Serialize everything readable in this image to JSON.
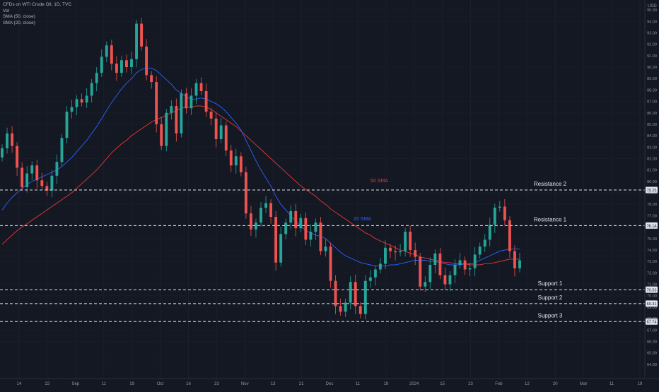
{
  "legend": {
    "symbol": "CFDs on WTI Crude Oil, 1D, TVC",
    "volume": "Vol",
    "sma50": "SMA (50, close)",
    "sma20": "SMA (20, close)"
  },
  "currency": "USD",
  "colors": {
    "background": "#141823",
    "up": "#26a69a",
    "down": "#ef5350",
    "sma20": "#2962ff",
    "sma50": "#e53935",
    "level_line": "#e0e3eb",
    "axis_text": "#9598a1"
  },
  "chart_data": {
    "type": "candlestick",
    "title": "CFDs on WTI Crude Oil, 1D, TVC",
    "ylim": [
      63.0,
      95.5
    ],
    "y_ticks": [
      64.0,
      65.0,
      66.0,
      67.0,
      68.0,
      69.0,
      70.0,
      71.0,
      72.0,
      73.0,
      74.0,
      75.0,
      76.0,
      77.0,
      78.0,
      79.0,
      80.0,
      81.0,
      82.0,
      83.0,
      84.0,
      85.0,
      86.0,
      87.0,
      88.0,
      89.0,
      90.0,
      91.0,
      92.0,
      93.0,
      94.0,
      95.0
    ],
    "x_tick_labels": [
      "14",
      "22",
      "Sep",
      "11",
      "19",
      "Oct",
      "16",
      "23",
      "Nov",
      "13",
      "21",
      "Dec",
      "11",
      "19",
      "2024",
      "15",
      "23",
      "Feb",
      "12",
      "20",
      "Mar",
      "11",
      "19"
    ],
    "price_labels": [
      "79.25",
      "76.14",
      "70.53",
      "69.31",
      "67.74"
    ],
    "levels": [
      {
        "label": "Resistance 2",
        "price": 79.25
      },
      {
        "label": "Resistance 1",
        "price": 76.14
      },
      {
        "label": "Support 1",
        "price": 70.53
      },
      {
        "label": "Support 2",
        "price": 69.31
      },
      {
        "label": "Support 3",
        "price": 67.74
      }
    ],
    "annotations": {
      "sma50": "50 SMA",
      "sma20": "20 SMA"
    },
    "series": [
      {
        "name": "SMA (20, close)"
      },
      {
        "name": "SMA (50, close)"
      }
    ],
    "closes": [
      82.9,
      84.2,
      83.1,
      81.2,
      79.5,
      80.7,
      81.4,
      80.1,
      79.6,
      79.2,
      80.5,
      81.7,
      83.8,
      86.1,
      86.5,
      87.2,
      86.9,
      87.5,
      88.6,
      89.5,
      90.9,
      91.9,
      90.3,
      89.5,
      90.6,
      90.0,
      90.7,
      93.8,
      91.8,
      89.3,
      88.7,
      85.0,
      83.1,
      86.0,
      86.6,
      84.2,
      87.7,
      86.4,
      87.5,
      88.6,
      87.9,
      86.1,
      85.5,
      83.7,
      84.9,
      82.7,
      81.4,
      82.2,
      80.8,
      77.2,
      75.8,
      76.4,
      77.7,
      78.1,
      76.9,
      72.9,
      75.4,
      76.4,
      77.4,
      75.9,
      76.8,
      74.9,
      75.6,
      76.4,
      73.9,
      74.3,
      71.3,
      69.1,
      68.6,
      69.4,
      71.2,
      69.1,
      68.4,
      71.3,
      71.6,
      72.3,
      72.8,
      74.2,
      73.9,
      73.8,
      73.9,
      75.6,
      74.0,
      73.4,
      70.8,
      71.2,
      72.7,
      73.7,
      71.8,
      71.0,
      71.8,
      72.7,
      73.1,
      72.3,
      72.4,
      73.6,
      74.3,
      74.9,
      76.2,
      77.7,
      77.8,
      76.6,
      73.9,
      72.4,
      73.1
    ],
    "sma20": [
      77.5,
      78.1,
      78.6,
      79.0,
      79.4,
      79.7,
      80.0,
      80.2,
      80.4,
      80.6,
      80.8,
      81.0,
      81.3,
      81.7,
      82.1,
      82.6,
      83.1,
      83.6,
      84.2,
      84.8,
      85.5,
      86.2,
      86.9,
      87.5,
      88.1,
      88.6,
      89.0,
      89.5,
      89.8,
      89.9,
      89.9,
      89.7,
      89.3,
      88.9,
      88.5,
      88.0,
      87.7,
      87.4,
      87.2,
      87.2,
      87.3,
      87.2,
      87.0,
      86.8,
      86.5,
      86.1,
      85.6,
      85.1,
      84.5,
      83.6,
      82.7,
      81.8,
      81.0,
      80.3,
      79.6,
      78.7,
      78.0,
      77.5,
      77.0,
      76.5,
      76.1,
      75.7,
      75.5,
      75.3,
      75.2,
      75.0,
      74.6,
      74.2,
      73.8,
      73.5,
      73.3,
      73.1,
      72.9,
      72.8,
      72.7,
      72.6,
      72.6,
      72.6,
      72.7,
      72.7,
      72.8,
      72.9,
      73.0,
      73.1,
      73.1,
      73.1,
      73.0,
      73.0,
      72.9,
      72.8,
      72.7,
      72.7,
      72.7,
      72.8,
      72.8,
      72.9,
      73.1,
      73.3,
      73.5,
      73.7,
      73.9,
      74.0,
      74.1,
      74.1,
      74.1
    ],
    "sma50": [
      74.5,
      74.9,
      75.3,
      75.7,
      76.0,
      76.3,
      76.6,
      76.9,
      77.2,
      77.5,
      77.8,
      78.1,
      78.4,
      78.7,
      79.0,
      79.4,
      79.8,
      80.2,
      80.6,
      81.0,
      81.5,
      82.0,
      82.5,
      82.9,
      83.3,
      83.6,
      84.0,
      84.3,
      84.6,
      84.9,
      85.2,
      85.4,
      85.6,
      85.8,
      86.0,
      86.2,
      86.4,
      86.5,
      86.5,
      86.6,
      86.6,
      86.5,
      86.3,
      86.0,
      85.7,
      85.4,
      85.1,
      84.8,
      84.4,
      84.0,
      83.6,
      83.2,
      82.8,
      82.4,
      82.0,
      81.6,
      81.2,
      80.8,
      80.4,
      80.0,
      79.6,
      79.3,
      79.0,
      78.7,
      78.3,
      78.0,
      77.6,
      77.3,
      77.0,
      76.7,
      76.4,
      76.1,
      75.8,
      75.5,
      75.3,
      75.0,
      74.8,
      74.6,
      74.4,
      74.2,
      74.0,
      73.9,
      73.7,
      73.6,
      73.4,
      73.3,
      73.2,
      73.1,
      73.0,
      72.9,
      72.9,
      72.8,
      72.8,
      72.8,
      72.7,
      72.7,
      72.7,
      72.8,
      72.8,
      72.9,
      73.0,
      73.1,
      73.2,
      73.2,
      73.2
    ]
  }
}
